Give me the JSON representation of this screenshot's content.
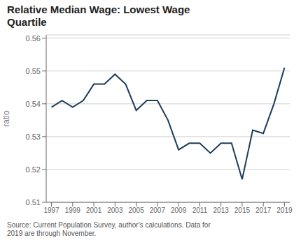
{
  "chart_data": {
    "type": "line",
    "title": "Relative Median Wage: Lowest Wage\nQuartile",
    "y_label": "ratio",
    "x": [
      1997,
      1998,
      1999,
      2000,
      2001,
      2002,
      2003,
      2004,
      2005,
      2006,
      2007,
      2008,
      2009,
      2010,
      2011,
      2012,
      2013,
      2014,
      2015,
      2016,
      2017,
      2018,
      2019
    ],
    "values": [
      0.539,
      0.541,
      0.539,
      0.541,
      0.546,
      0.546,
      0.549,
      0.546,
      0.538,
      0.541,
      0.541,
      0.535,
      0.526,
      0.528,
      0.528,
      0.525,
      0.528,
      0.528,
      0.517,
      0.532,
      0.531,
      0.54,
      0.551
    ],
    "color": "#1d3d5c",
    "xlim": [
      1996.5,
      2019.5
    ],
    "xticks": [
      1997,
      1999,
      2001,
      2003,
      2005,
      2007,
      2009,
      2011,
      2013,
      2015,
      2017,
      2019
    ],
    "ylim": [
      0.51,
      0.561
    ],
    "yticks": [
      0.51,
      0.52,
      0.53,
      0.54,
      0.55,
      0.56
    ],
    "grid": true,
    "annotations": [
      "Source: Current Population Survey, author's calculations. Data for\n2019 are through November."
    ]
  }
}
